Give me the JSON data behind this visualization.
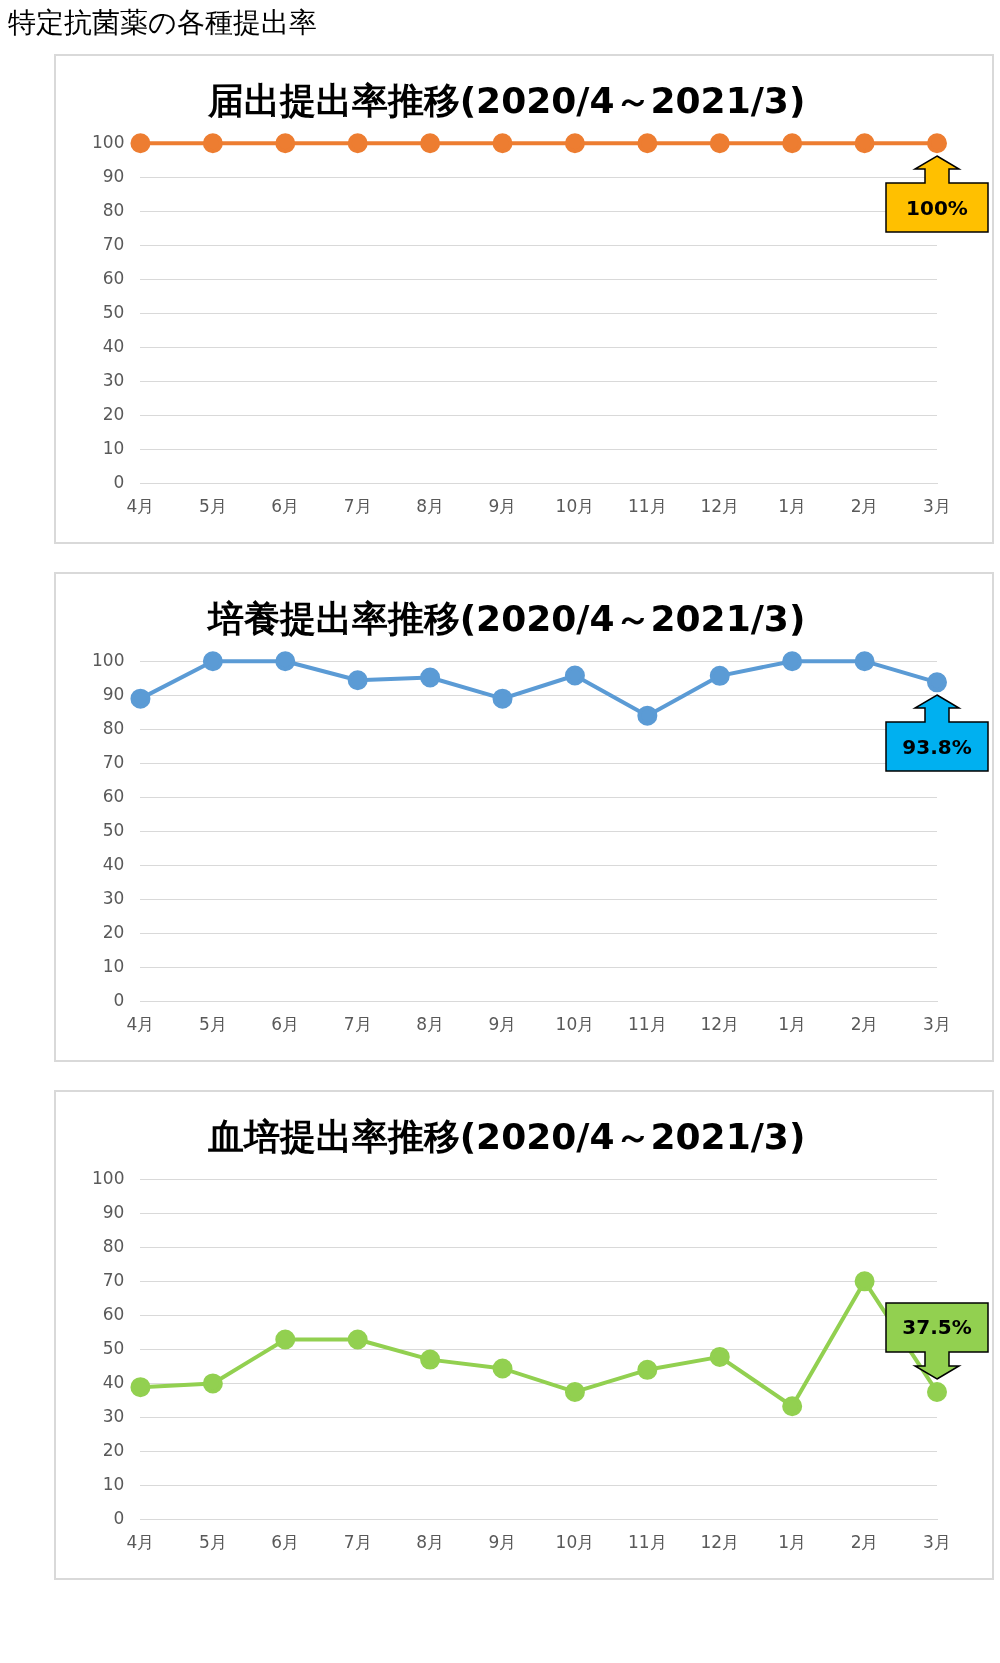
{
  "chart_data": [
    {
      "type": "other",
      "title": "特定抗菌薬の各種提出率"
    },
    {
      "type": "line",
      "title": "届出提出率推移(2020/4～2021/3)",
      "categories": [
        "4月",
        "5月",
        "6月",
        "7月",
        "8月",
        "9月",
        "10月",
        "11月",
        "12月",
        "1月",
        "2月",
        "3月"
      ],
      "series": [
        {
          "color": "#ed7d31",
          "values": [
            100,
            100,
            100,
            100,
            100,
            100,
            100,
            100,
            100,
            100,
            100,
            100
          ]
        }
      ],
      "ylim": [
        0,
        100
      ],
      "yticks": [
        0,
        10,
        20,
        30,
        40,
        50,
        60,
        70,
        80,
        90,
        100
      ],
      "grid": "y",
      "legend": false,
      "marker": "circle",
      "line_style": "solid",
      "annotations": [
        {
          "text": "100%",
          "x": "3月",
          "y": 100
        }
      ]
    },
    {
      "type": "line",
      "title": "培養提出率推移(2020/4～2021/3)",
      "categories": [
        "4月",
        "5月",
        "6月",
        "7月",
        "8月",
        "9月",
        "10月",
        "11月",
        "12月",
        "1月",
        "2月",
        "3月"
      ],
      "series": [
        {
          "color": "#5b9bd5",
          "values": [
            89,
            100,
            100,
            94.4,
            95.2,
            89,
            95.8,
            84,
            95.7,
            100,
            100,
            93.8
          ]
        }
      ],
      "ylim": [
        0,
        100
      ],
      "yticks": [
        0,
        10,
        20,
        30,
        40,
        50,
        60,
        70,
        80,
        90,
        100
      ],
      "grid": "y",
      "legend": false,
      "marker": "circle",
      "line_style": "solid",
      "annotations": [
        {
          "text": "93.8%",
          "x": "3月",
          "y": 93.8
        }
      ]
    },
    {
      "type": "line",
      "title": "血培提出率推移(2020/4～2021/3)",
      "categories": [
        "4月",
        "5月",
        "6月",
        "7月",
        "8月",
        "9月",
        "10月",
        "11月",
        "12月",
        "1月",
        "2月",
        "3月"
      ],
      "series": [
        {
          "color": "#92d050",
          "values": [
            38.9,
            40,
            52.9,
            52.9,
            47,
            44.4,
            37.5,
            44,
            47.8,
            33.3,
            70,
            37.5
          ]
        }
      ],
      "ylim": [
        0,
        100
      ],
      "yticks": [
        0,
        10,
        20,
        30,
        40,
        50,
        60,
        70,
        80,
        90,
        100
      ],
      "grid": "y",
      "legend": false,
      "marker": "circle",
      "line_style": "solid",
      "annotations": [
        {
          "text": "37.5%",
          "x": "3月",
          "y": 37.5
        }
      ]
    }
  ]
}
